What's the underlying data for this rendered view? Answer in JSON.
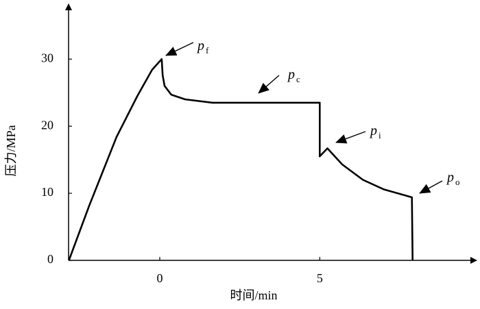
{
  "chart_data": {
    "type": "line",
    "xlabel": "时间/min",
    "ylabel": "压力/MPa",
    "x": [
      -2.84,
      -2.2,
      -1.35,
      -0.7,
      -0.24,
      0.06,
      0.09,
      0.15,
      0.36,
      0.79,
      1.65,
      5.0,
      5.0,
      5.24,
      5.7,
      6.35,
      6.99,
      7.88,
      7.9
    ],
    "series": [
      {
        "name": null,
        "color": "#000000",
        "values": [
          0,
          8.2,
          18.4,
          24.5,
          28.4,
          30.0,
          27.6,
          26.0,
          24.7,
          24.0,
          23.5,
          23.5,
          15.5,
          16.7,
          14.3,
          12.0,
          10.6,
          9.4,
          0
        ]
      }
    ],
    "xlim": [
      -2.85,
      9.9
    ],
    "ylim": [
      0,
      38.3
    ],
    "xticks": [
      0,
      5
    ],
    "yticks": [
      0,
      10,
      20,
      30
    ],
    "grid": false,
    "annotations": [
      {
        "text": "p",
        "subscript": "f"
      },
      {
        "text": "p",
        "subscript": "c"
      },
      {
        "text": "p",
        "subscript": "i"
      },
      {
        "text": "p",
        "subscript": "o"
      }
    ]
  }
}
